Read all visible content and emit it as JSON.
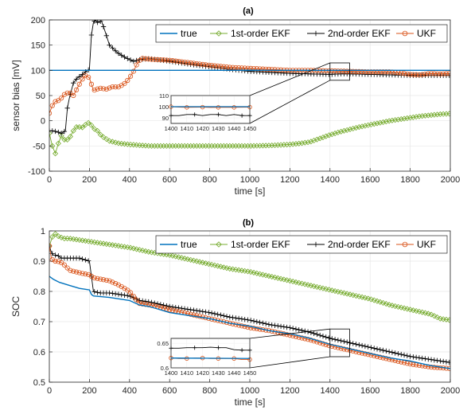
{
  "chart_data": [
    {
      "panel": "a",
      "type": "line",
      "title": "(a)",
      "xlabel": "time [s]",
      "ylabel": "sensor bias [mV]",
      "xlim": [
        0,
        2000
      ],
      "ylim": [
        -100,
        200
      ],
      "xticks": [
        0,
        200,
        400,
        600,
        800,
        1000,
        1200,
        1400,
        1600,
        1800,
        2000
      ],
      "yticks": [
        -100,
        -50,
        0,
        50,
        100,
        150,
        200
      ],
      "legend": "top-right",
      "series": [
        {
          "name": "true",
          "color": "#0072BD",
          "marker": "none",
          "x": [
            0,
            2000
          ],
          "y": [
            100,
            100
          ]
        },
        {
          "name": "1st-order EKF",
          "color": "#77AC30",
          "marker": "diamond",
          "x": [
            0,
            15,
            30,
            45,
            60,
            80,
            100,
            120,
            140,
            160,
            180,
            200,
            220,
            240,
            260,
            300,
            350,
            400,
            500,
            600,
            700,
            800,
            900,
            1000,
            1100,
            1200,
            1250,
            1300,
            1350,
            1400,
            1450,
            1500,
            1550,
            1600,
            1650,
            1700,
            1750,
            1800,
            1850,
            1900,
            1950,
            2000
          ],
          "y": [
            -25,
            -50,
            -65,
            -45,
            -30,
            -40,
            -35,
            -20,
            -10,
            -15,
            -8,
            -3,
            -15,
            -20,
            -30,
            -40,
            -45,
            -47,
            -50,
            -50,
            -50,
            -50,
            -50,
            -50,
            -49,
            -47,
            -45,
            -42,
            -35,
            -28,
            -22,
            -17,
            -12,
            -8,
            -4,
            0,
            3,
            6,
            9,
            11,
            13,
            14
          ]
        },
        {
          "name": "2nd-order EKF",
          "color": "#000000",
          "marker": "plus",
          "x": [
            0,
            20,
            40,
            60,
            80,
            90,
            100,
            120,
            140,
            160,
            180,
            200,
            210,
            220,
            230,
            240,
            260,
            280,
            300,
            340,
            380,
            420,
            440,
            460,
            500,
            600,
            700,
            800,
            900,
            1000,
            1100,
            1200,
            1300,
            1400,
            1450,
            1500,
            1600,
            1700,
            1800,
            1900,
            2000
          ],
          "y": [
            -20,
            -20,
            -22,
            -25,
            -20,
            25,
            45,
            75,
            85,
            90,
            97,
            102,
            170,
            195,
            200,
            195,
            198,
            175,
            150,
            135,
            125,
            118,
            120,
            122,
            123,
            118,
            112,
            107,
            102,
            98,
            96,
            94,
            93,
            92,
            93,
            93,
            92,
            91,
            90,
            90,
            90
          ]
        },
        {
          "name": "UKF",
          "color": "#D95319",
          "marker": "circle",
          "x": [
            0,
            15,
            30,
            45,
            60,
            75,
            90,
            105,
            120,
            140,
            160,
            180,
            200,
            220,
            240,
            260,
            280,
            300,
            320,
            340,
            360,
            380,
            400,
            420,
            440,
            460,
            500,
            600,
            700,
            800,
            900,
            1000,
            1100,
            1200,
            1300,
            1400,
            1500,
            1600,
            1700,
            1750,
            1800,
            1850,
            1900,
            1950,
            2000
          ],
          "y": [
            15,
            30,
            38,
            40,
            45,
            52,
            55,
            55,
            50,
            65,
            80,
            90,
            85,
            60,
            63,
            65,
            62,
            65,
            68,
            66,
            70,
            75,
            85,
            98,
            115,
            124,
            122,
            120,
            115,
            110,
            106,
            104,
            102,
            100,
            100,
            99,
            98,
            97,
            97,
            95,
            92,
            91,
            94,
            93,
            94
          ]
        }
      ],
      "inset": {
        "xlim": [
          1400,
          1450
        ],
        "ylim": [
          85,
          110
        ],
        "xticks": [
          1400,
          1410,
          1420,
          1430,
          1440,
          1450
        ],
        "yticks": [
          90,
          100,
          110
        ],
        "series": [
          {
            "name": "true",
            "x": [
              1400,
              1450
            ],
            "y": [
              100,
              100
            ]
          },
          {
            "name": "2nd-order EKF",
            "x": [
              1400,
              1405,
              1410,
              1415,
              1420,
              1425,
              1430,
              1435,
              1440,
              1445,
              1450
            ],
            "y": [
              92,
              92,
              93,
              93,
              92,
              93,
              93,
              92,
              93,
              92,
              92
            ]
          },
          {
            "name": "UKF",
            "x": [
              1400,
              1405,
              1410,
              1415,
              1420,
              1425,
              1430,
              1435,
              1440,
              1445,
              1450
            ],
            "y": [
              100,
              99.6,
              99.4,
              99.5,
              99.6,
              99.3,
              99.4,
              99.5,
              99.4,
              99.5,
              99.6
            ]
          }
        ]
      }
    },
    {
      "panel": "b",
      "type": "line",
      "title": "(b)",
      "xlabel": "time [s]",
      "ylabel": "SOC",
      "xlim": [
        0,
        2000
      ],
      "ylim": [
        0.5,
        1.0
      ],
      "xticks": [
        0,
        200,
        400,
        600,
        800,
        1000,
        1200,
        1400,
        1600,
        1800,
        2000
      ],
      "yticks": [
        0.5,
        0.6,
        0.7,
        0.8,
        0.9,
        1
      ],
      "legend": "top-right",
      "series": [
        {
          "name": "true",
          "color": "#0072BD",
          "marker": "none",
          "x": [
            0,
            20,
            50,
            100,
            150,
            200,
            210,
            220,
            300,
            400,
            450,
            500,
            600,
            700,
            800,
            900,
            1000,
            1100,
            1200,
            1300,
            1400,
            1500,
            1600,
            1700,
            1800,
            1900,
            2000
          ],
          "y": [
            0.85,
            0.84,
            0.83,
            0.82,
            0.81,
            0.805,
            0.79,
            0.785,
            0.78,
            0.77,
            0.755,
            0.75,
            0.73,
            0.72,
            0.71,
            0.695,
            0.685,
            0.67,
            0.66,
            0.645,
            0.625,
            0.61,
            0.595,
            0.58,
            0.57,
            0.555,
            0.545
          ]
        },
        {
          "name": "1st-order EKF",
          "color": "#77AC30",
          "marker": "diamond",
          "x": [
            0,
            15,
            30,
            50,
            75,
            100,
            150,
            200,
            300,
            400,
            500,
            600,
            700,
            800,
            900,
            1000,
            1100,
            1200,
            1300,
            1400,
            1500,
            1600,
            1700,
            1800,
            1900,
            1950,
            2000
          ],
          "y": [
            0.95,
            0.98,
            0.99,
            0.98,
            0.975,
            0.975,
            0.97,
            0.965,
            0.955,
            0.945,
            0.93,
            0.92,
            0.905,
            0.89,
            0.875,
            0.865,
            0.85,
            0.835,
            0.82,
            0.805,
            0.79,
            0.775,
            0.755,
            0.74,
            0.725,
            0.71,
            0.705
          ]
        },
        {
          "name": "2nd-order EKF",
          "color": "#000000",
          "marker": "plus",
          "x": [
            0,
            10,
            20,
            40,
            60,
            100,
            150,
            200,
            210,
            220,
            250,
            300,
            350,
            400,
            450,
            500,
            600,
            700,
            800,
            900,
            1000,
            1100,
            1200,
            1300,
            1400,
            1500,
            1600,
            1700,
            1800,
            1900,
            2000
          ],
          "y": [
            0.95,
            0.93,
            0.92,
            0.92,
            0.91,
            0.91,
            0.91,
            0.9,
            0.85,
            0.8,
            0.795,
            0.795,
            0.79,
            0.785,
            0.77,
            0.765,
            0.75,
            0.74,
            0.73,
            0.715,
            0.705,
            0.69,
            0.68,
            0.665,
            0.645,
            0.63,
            0.615,
            0.6,
            0.585,
            0.575,
            0.565
          ]
        },
        {
          "name": "UKF",
          "color": "#D95319",
          "marker": "circle",
          "x": [
            0,
            10,
            20,
            40,
            60,
            80,
            100,
            130,
            160,
            200,
            220,
            260,
            300,
            350,
            400,
            450,
            500,
            600,
            700,
            800,
            900,
            1000,
            1100,
            1200,
            1300,
            1400,
            1500,
            1600,
            1700,
            1800,
            1900,
            2000
          ],
          "y": [
            0.95,
            0.91,
            0.9,
            0.9,
            0.895,
            0.885,
            0.87,
            0.865,
            0.86,
            0.855,
            0.845,
            0.84,
            0.835,
            0.82,
            0.8,
            0.76,
            0.755,
            0.74,
            0.725,
            0.71,
            0.695,
            0.68,
            0.67,
            0.655,
            0.64,
            0.62,
            0.605,
            0.59,
            0.575,
            0.56,
            0.55,
            0.545
          ]
        }
      ],
      "inset": {
        "xlim": [
          1400,
          1450
        ],
        "ylim": [
          0.6,
          0.66
        ],
        "xticks": [
          1400,
          1410,
          1420,
          1430,
          1440,
          1450
        ],
        "yticks": [
          0.6,
          0.65
        ],
        "ytick_labels": [
          "0.6",
          "0.65"
        ],
        "series": [
          {
            "name": "true",
            "x": [
              1400,
              1450
            ],
            "y": [
              0.62,
              0.619
            ]
          },
          {
            "name": "2nd-order EKF",
            "x": [
              1400,
              1405,
              1410,
              1415,
              1420,
              1425,
              1430,
              1435,
              1440,
              1445,
              1450
            ],
            "y": [
              0.64,
              0.64,
              0.641,
              0.641,
              0.641,
              0.642,
              0.641,
              0.641,
              0.637,
              0.636,
              0.636
            ]
          },
          {
            "name": "UKF",
            "x": [
              1400,
              1405,
              1410,
              1415,
              1420,
              1425,
              1430,
              1435,
              1440,
              1445,
              1450
            ],
            "y": [
              0.62,
              0.619,
              0.619,
              0.62,
              0.62,
              0.619,
              0.619,
              0.619,
              0.619,
              0.617,
              0.617
            ]
          }
        ]
      }
    }
  ]
}
